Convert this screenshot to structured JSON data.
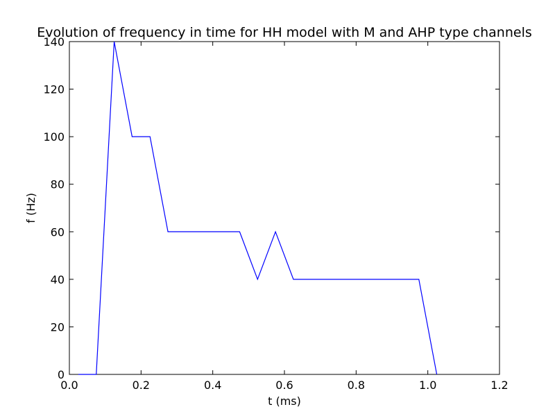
{
  "chart_data": {
    "type": "line",
    "title": "Evolution of frequency in time for HH model with M and AHP type channels",
    "xlabel": "t (ms)",
    "ylabel": "f (Hz)",
    "xlim": [
      0.0,
      1.2
    ],
    "ylim": [
      0,
      140
    ],
    "xticks": [
      0.0,
      0.2,
      0.4,
      0.6,
      0.8,
      1.0,
      1.2
    ],
    "xtick_labels": [
      "0.0",
      "0.2",
      "0.4",
      "0.6",
      "0.8",
      "1.0",
      "1.2"
    ],
    "yticks": [
      0,
      20,
      40,
      60,
      80,
      100,
      120,
      140
    ],
    "ytick_labels": [
      "0",
      "20",
      "40",
      "60",
      "80",
      "100",
      "120",
      "140"
    ],
    "grid": false,
    "series": [
      {
        "color": "#0000ff",
        "x": [
          0.025,
          0.075,
          0.125,
          0.175,
          0.225,
          0.275,
          0.325,
          0.375,
          0.425,
          0.475,
          0.525,
          0.575,
          0.625,
          0.675,
          0.725,
          0.775,
          0.825,
          0.875,
          0.925,
          0.975,
          1.025
        ],
        "y": [
          0,
          0,
          140,
          100,
          100,
          60,
          60,
          60,
          60,
          60,
          40,
          60,
          40,
          40,
          40,
          40,
          40,
          40,
          40,
          40,
          0
        ]
      }
    ]
  }
}
